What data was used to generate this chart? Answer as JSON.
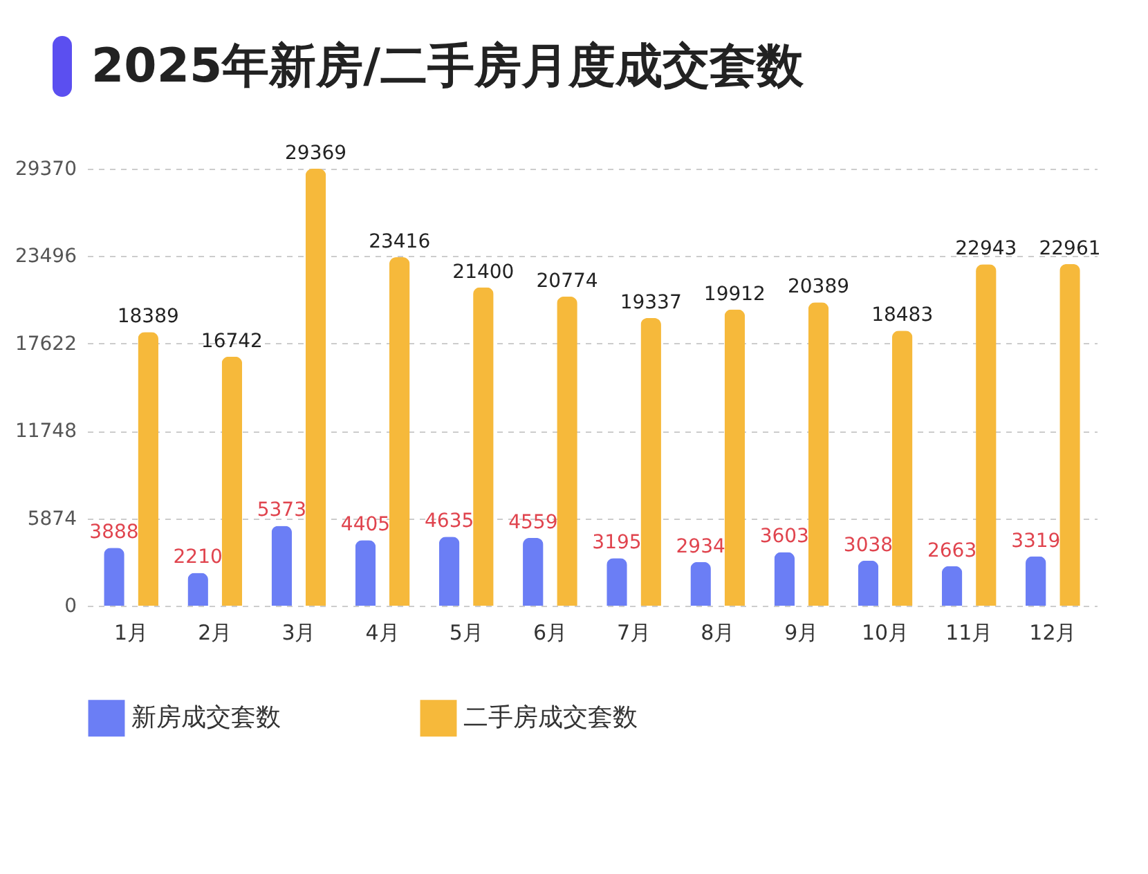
{
  "chart_data": {
    "type": "bar",
    "title": "2025年新房/二手房月度成交套数",
    "categories": [
      "1月",
      "2月",
      "3月",
      "4月",
      "5月",
      "6月",
      "7月",
      "8月",
      "9月",
      "10月",
      "11月",
      "12月"
    ],
    "series": [
      {
        "name": "新房成交套数",
        "color": "#6b7ef5",
        "values": [
          3888,
          2210,
          5373,
          4405,
          4635,
          4559,
          3195,
          2934,
          3603,
          3038,
          2663,
          3319
        ]
      },
      {
        "name": "二手房成交套数",
        "color": "#f6b93b",
        "values": [
          18389,
          16742,
          29369,
          23416,
          21400,
          20774,
          19337,
          19912,
          20389,
          18483,
          22943,
          22961
        ]
      }
    ],
    "ylim": [
      0,
      29370
    ],
    "yticks": [
      0,
      5874,
      11748,
      17622,
      23496,
      29370
    ],
    "grid": "y",
    "legend": "bottom",
    "data_labels": true
  }
}
